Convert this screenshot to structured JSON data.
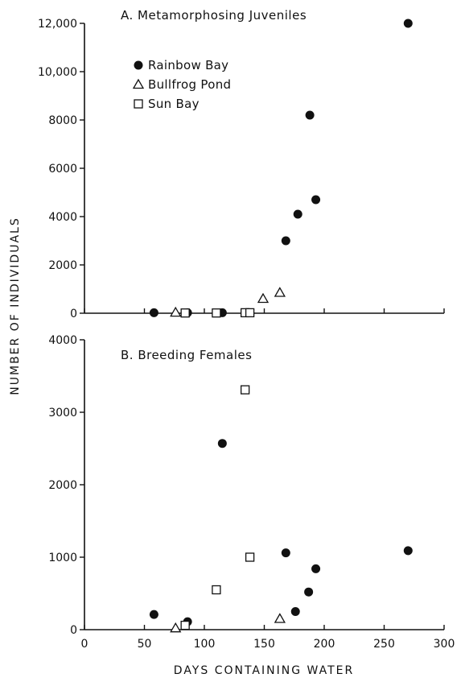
{
  "chart_data": [
    {
      "type": "scatter",
      "title": "A. Metamorphosing Juveniles",
      "xlim": [
        0,
        300
      ],
      "ylim": [
        0,
        12000
      ],
      "y_ticks": [
        {
          "value": 0,
          "label": "0"
        },
        {
          "value": 2000,
          "label": "2000"
        },
        {
          "value": 4000,
          "label": "4000"
        },
        {
          "value": 6000,
          "label": "6000"
        },
        {
          "value": 8000,
          "label": "8000"
        },
        {
          "value": 10000,
          "label": "10,000"
        },
        {
          "value": 12000,
          "label": "12,000"
        }
      ],
      "legend": "top-left",
      "series": [
        {
          "name": "Rainbow Bay",
          "marker": "filled-circle",
          "x": [
            58,
            86,
            115,
            168,
            178,
            188,
            193,
            270
          ],
          "y": [
            20,
            20,
            20,
            3000,
            4100,
            8200,
            4700,
            12000
          ]
        },
        {
          "name": "Bullfrog Pond",
          "marker": "open-triangle",
          "x": [
            76,
            149,
            163
          ],
          "y": [
            30,
            600,
            850
          ]
        },
        {
          "name": "Sun Bay",
          "marker": "open-square",
          "x": [
            84,
            110,
            134,
            138
          ],
          "y": [
            10,
            10,
            20,
            20
          ]
        }
      ]
    },
    {
      "type": "scatter",
      "title": "B. Breeding Females",
      "xlim": [
        0,
        300
      ],
      "ylim": [
        0,
        4000
      ],
      "y_ticks": [
        {
          "value": 0,
          "label": "0"
        },
        {
          "value": 1000,
          "label": "1000"
        },
        {
          "value": 2000,
          "label": "2000"
        },
        {
          "value": 3000,
          "label": "3000"
        },
        {
          "value": 4000,
          "label": "4000"
        }
      ],
      "x_ticks": [
        {
          "value": 0,
          "label": "0"
        },
        {
          "value": 50,
          "label": "50"
        },
        {
          "value": 100,
          "label": "100"
        },
        {
          "value": 150,
          "label": "150"
        },
        {
          "value": 200,
          "label": "200"
        },
        {
          "value": 250,
          "label": "250"
        },
        {
          "value": 300,
          "label": "300"
        }
      ],
      "series": [
        {
          "name": "Rainbow Bay",
          "marker": "filled-circle",
          "x": [
            58,
            86,
            115,
            168,
            176,
            187,
            193,
            270
          ],
          "y": [
            210,
            110,
            2570,
            1060,
            250,
            520,
            840,
            1090
          ]
        },
        {
          "name": "Bullfrog Pond",
          "marker": "open-triangle",
          "x": [
            76,
            163
          ],
          "y": [
            20,
            150
          ]
        },
        {
          "name": "Sun Bay",
          "marker": "open-square",
          "x": [
            84,
            110,
            134,
            138
          ],
          "y": [
            60,
            550,
            3310,
            1000
          ]
        }
      ]
    }
  ],
  "shared_ylabel": "NUMBER OF INDIVIDUALS",
  "shared_xlabel": "DAYS CONTAINING WATER"
}
